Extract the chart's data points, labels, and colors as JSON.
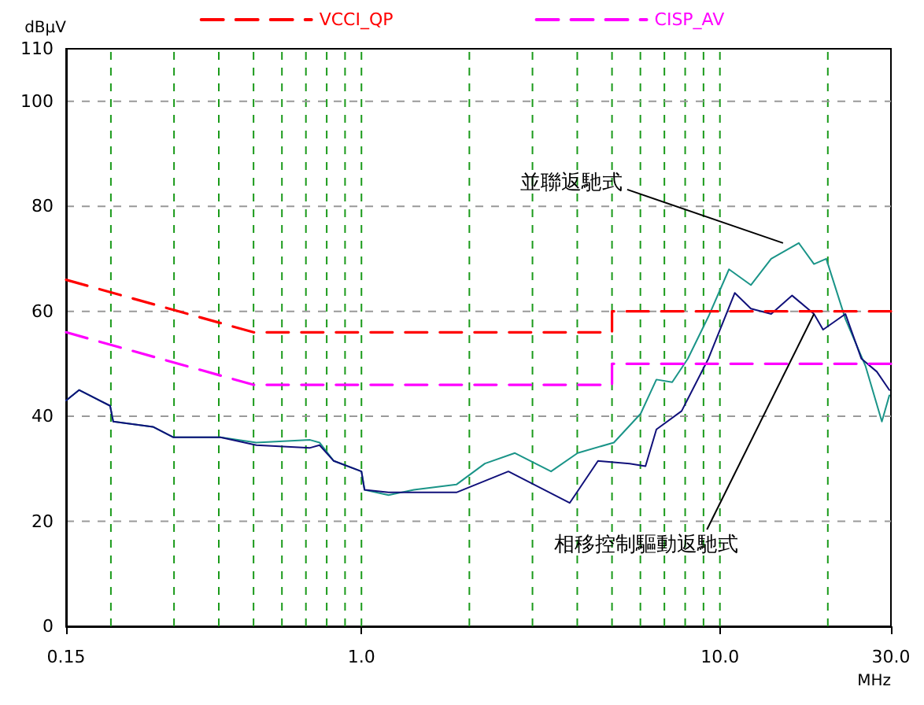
{
  "chart_data": {
    "type": "line",
    "xlabel": "MHz",
    "ylabel": "dBμV",
    "log": "x",
    "grid": true,
    "legend": "top",
    "marker": "none",
    "xlim": [
      0.15,
      30
    ],
    "ylim": [
      0,
      110
    ],
    "xticks": [
      {
        "value": 0.15,
        "label": "0.15"
      },
      {
        "value": 0.2,
        "label": null
      },
      {
        "value": 0.3,
        "label": null
      },
      {
        "value": 0.4,
        "label": null
      },
      {
        "value": 0.5,
        "label": null
      },
      {
        "value": 0.6,
        "label": null
      },
      {
        "value": 0.7,
        "label": null
      },
      {
        "value": 0.8,
        "label": null
      },
      {
        "value": 0.9,
        "label": null
      },
      {
        "value": 1,
        "label": "1.0"
      },
      {
        "value": 2,
        "label": null
      },
      {
        "value": 3,
        "label": null
      },
      {
        "value": 4,
        "label": null
      },
      {
        "value": 5,
        "label": null
      },
      {
        "value": 6,
        "label": null
      },
      {
        "value": 7,
        "label": null
      },
      {
        "value": 8,
        "label": null
      },
      {
        "value": 9,
        "label": null
      },
      {
        "value": 10,
        "label": "10.0"
      },
      {
        "value": 20,
        "label": null
      },
      {
        "value": 30,
        "label": "30.0"
      }
    ],
    "yticks": [
      0,
      20,
      40,
      60,
      80,
      100,
      110
    ],
    "series": [
      {
        "name": "VCCI_QP",
        "color": "#ff0000",
        "line_style": "dashed",
        "x": [
          0.15,
          0.5,
          5,
          5,
          30
        ],
        "values": [
          66,
          56,
          56,
          60,
          60
        ]
      },
      {
        "name": "CISP_AV",
        "color": "#ff00ff",
        "line_style": "dashed",
        "x": [
          0.15,
          0.5,
          5,
          5,
          30
        ],
        "values": [
          56,
          46,
          46,
          50,
          50
        ]
      },
      {
        "color": "#1a9488",
        "line_style": "solid",
        "x": [
          0.15,
          0.163,
          0.199,
          0.203,
          0.262,
          0.299,
          0.404,
          0.509,
          0.719,
          0.764,
          0.837,
          1.0,
          1.02,
          1.19,
          1.4,
          1.84,
          2.21,
          2.68,
          3.38,
          4.01,
          5.06,
          6.01,
          6.65,
          7.36,
          8.14,
          9.29,
          10.6,
          12.2,
          13.9,
          16.6,
          18.3,
          19.8,
          22.4,
          25.5,
          28.3,
          29.7
        ],
        "values": [
          43,
          45,
          42,
          39,
          38,
          36,
          36,
          35,
          35.5,
          35,
          31.5,
          29.5,
          26,
          25,
          26,
          27,
          31,
          33,
          29.5,
          33,
          35,
          40.5,
          47,
          46.5,
          51,
          59,
          68,
          65,
          70,
          73,
          69,
          70,
          58.5,
          49.5,
          39,
          44
        ]
      },
      {
        "color": "#10107a",
        "line_style": "solid",
        "x": [
          0.15,
          0.163,
          0.199,
          0.203,
          0.262,
          0.299,
          0.404,
          0.509,
          0.719,
          0.764,
          0.837,
          1.0,
          1.02,
          1.19,
          1.4,
          1.84,
          2.57,
          3.81,
          4.57,
          5.6,
          6.2,
          6.65,
          7.82,
          9.29,
          11.0,
          12.2,
          13.9,
          15.9,
          18.3,
          19.4,
          22.4,
          24.8,
          27.4,
          29.7
        ],
        "values": [
          43,
          45,
          42,
          39,
          38,
          36,
          36,
          34.5,
          34,
          34.5,
          31.5,
          29.5,
          26,
          25.5,
          25.5,
          25.5,
          29.5,
          23.5,
          31.5,
          31,
          30.5,
          37.5,
          41,
          51,
          63.5,
          60.5,
          59.5,
          63,
          59.5,
          56.5,
          59.5,
          51,
          48.5,
          45
        ]
      }
    ],
    "annotations": [
      {
        "text": "並聯返馳式",
        "x": 15,
        "y": 73
      },
      {
        "text": "相移控制驅動返馳式",
        "x": 18.3,
        "y": 59.5
      }
    ]
  }
}
